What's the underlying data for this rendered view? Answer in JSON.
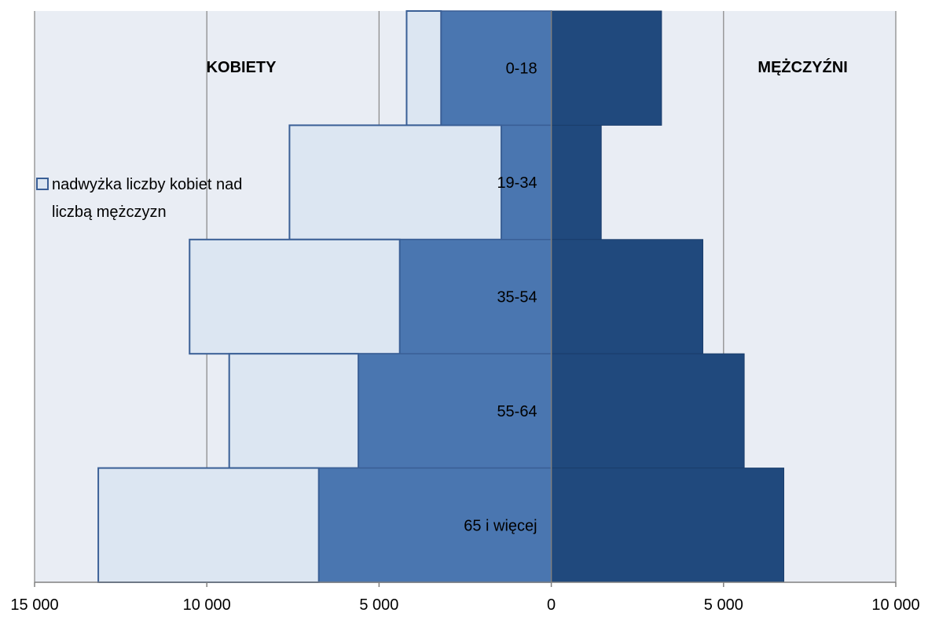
{
  "chart_data": {
    "type": "bar",
    "orientation": "horizontal",
    "layout": "population-pyramid",
    "categories": [
      "0-18",
      "19-34",
      "35-54",
      "55-64",
      "65 i więcej"
    ],
    "series": [
      {
        "side": "left",
        "stacked_base": true,
        "values": [
          3200,
          1450,
          4400,
          5600,
          6750
        ],
        "color": "#4a76b0"
      },
      {
        "name": "nadwyżka liczby kobiet nad liczbą mężczyzn",
        "side": "left",
        "stacked_on": 0,
        "values": [
          1000,
          6150,
          6100,
          3750,
          6400
        ],
        "color": "#dce6f2",
        "border": "#3a5f96"
      },
      {
        "side": "right",
        "values": [
          3200,
          1450,
          4400,
          5600,
          6750
        ],
        "color": "#20497d"
      }
    ],
    "side_labels": {
      "left": "KOBIETY",
      "right": "MĘŻCZYŹNI"
    },
    "legend": {
      "label_line1": "nadwyżka liczby kobiet nad",
      "label_line2": "liczbą mężczyzn",
      "placement": "left"
    },
    "x_axis": {
      "min": -15000,
      "max": 10000,
      "ticks": [
        -15000,
        -10000,
        -5000,
        0,
        5000,
        10000
      ],
      "tick_labels": [
        "15 000",
        "10 000",
        "5 000",
        "0",
        "5 000",
        "10 000"
      ]
    },
    "grid": true,
    "colors": {
      "plot_background": "#e9edf4",
      "gridline": "#8c8c8c",
      "axis": "#808080"
    }
  }
}
